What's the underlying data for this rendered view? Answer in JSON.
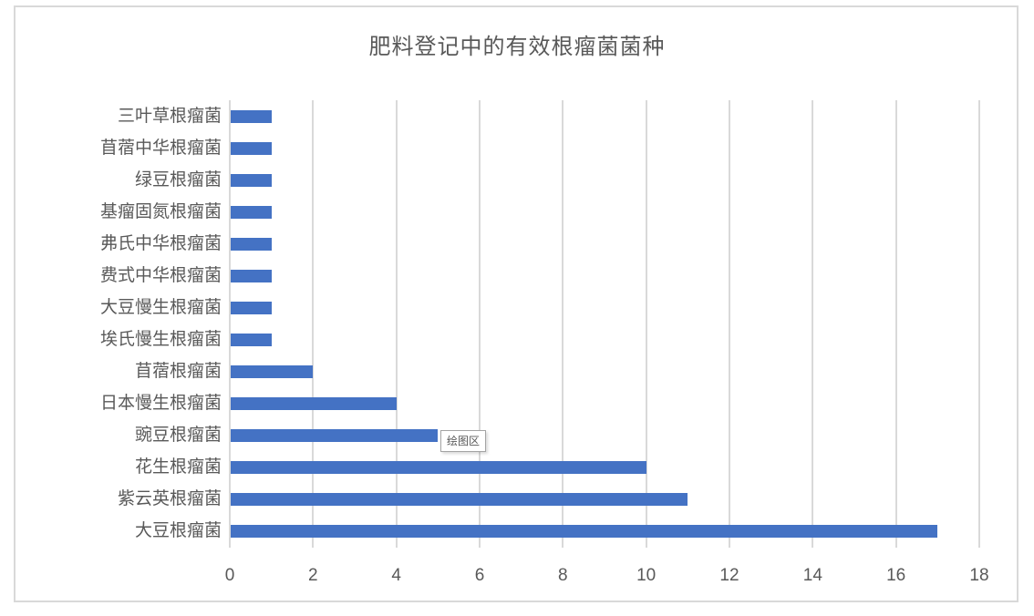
{
  "chart_data": {
    "type": "bar",
    "orientation": "horizontal",
    "title": "肥料登记中的有效根瘤菌菌种",
    "categories": [
      "三叶草根瘤菌",
      "苜蓿中华根瘤菌",
      "绿豆根瘤菌",
      "基瘤固氮根瘤菌",
      "弗氏中华根瘤菌",
      "费式中华根瘤菌",
      "大豆慢生根瘤菌",
      "埃氏慢生根瘤菌",
      "苜蓿根瘤菌",
      "日本慢生根瘤菌",
      "豌豆根瘤菌",
      "花生根瘤菌",
      "紫云英根瘤菌",
      "大豆根瘤菌"
    ],
    "values": [
      1,
      1,
      1,
      1,
      1,
      1,
      1,
      1,
      2,
      4,
      5,
      10,
      11,
      17
    ],
    "xlabel": "",
    "ylabel": "",
    "xlim": [
      0,
      18
    ],
    "x_ticks": [
      0,
      2,
      4,
      6,
      8,
      10,
      12,
      14,
      16,
      18
    ],
    "grid": true,
    "legend_position": "none",
    "bar_color": "#4472C4",
    "gridline_color": "#D9D9D9",
    "text_color": "#595959"
  },
  "tooltip": {
    "label": "绘图区"
  }
}
